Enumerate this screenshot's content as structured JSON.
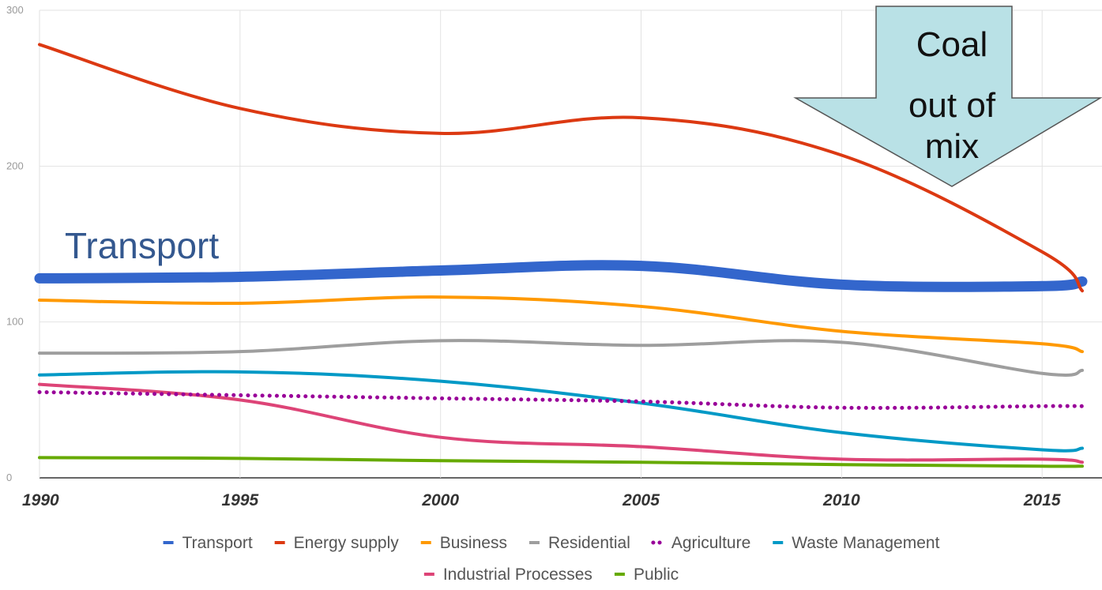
{
  "chart_data": {
    "type": "line",
    "title": "",
    "xlabel": "",
    "ylabel": "",
    "x_ticks": [
      "1990",
      "1995",
      "2000",
      "2005",
      "2010",
      "2015"
    ],
    "y_ticks": [
      "0",
      "100",
      "200",
      "300"
    ],
    "xlim": [
      1990,
      2016
    ],
    "ylim": [
      0,
      300
    ],
    "grid": true,
    "legend_position": "bottom",
    "x": [
      1990,
      1995,
      2000,
      2005,
      2010,
      2015,
      2016
    ],
    "series": [
      {
        "name": "Transport",
        "color": "#3366cc",
        "style": "solid-thick",
        "values": [
          128,
          129,
          133,
          136,
          124,
          123,
          126
        ]
      },
      {
        "name": "Energy supply",
        "color": "#dc3912",
        "style": "solid",
        "values": [
          278,
          237,
          221,
          231,
          207,
          145,
          120
        ]
      },
      {
        "name": "Business",
        "color": "#ff9900",
        "style": "solid",
        "values": [
          114,
          112,
          116,
          110,
          94,
          86,
          81
        ]
      },
      {
        "name": "Residential",
        "color": "#9e9e9e",
        "style": "solid",
        "values": [
          80,
          81,
          88,
          85,
          87,
          67,
          69
        ]
      },
      {
        "name": "Agriculture",
        "color": "#990099",
        "style": "dotted",
        "values": [
          55,
          53,
          51,
          49,
          45,
          46,
          46
        ]
      },
      {
        "name": "Waste Management",
        "color": "#0099c6",
        "style": "solid",
        "values": [
          66,
          68,
          62,
          48,
          29,
          18,
          19
        ]
      },
      {
        "name": "Industrial Processes",
        "color": "#dd4477",
        "style": "solid",
        "values": [
          60,
          50,
          26,
          20,
          12,
          12,
          10
        ]
      },
      {
        "name": "Public",
        "color": "#66aa00",
        "style": "solid",
        "values": [
          13,
          12.5,
          11,
          10,
          8.5,
          7.5,
          7.5
        ]
      }
    ],
    "annotations": [
      {
        "text": "Transport",
        "color": "#34588f"
      },
      {
        "text_lines": [
          "Coal",
          "out of",
          "mix"
        ],
        "shape": "down-arrow",
        "fill": "#b9e1e6"
      }
    ]
  }
}
